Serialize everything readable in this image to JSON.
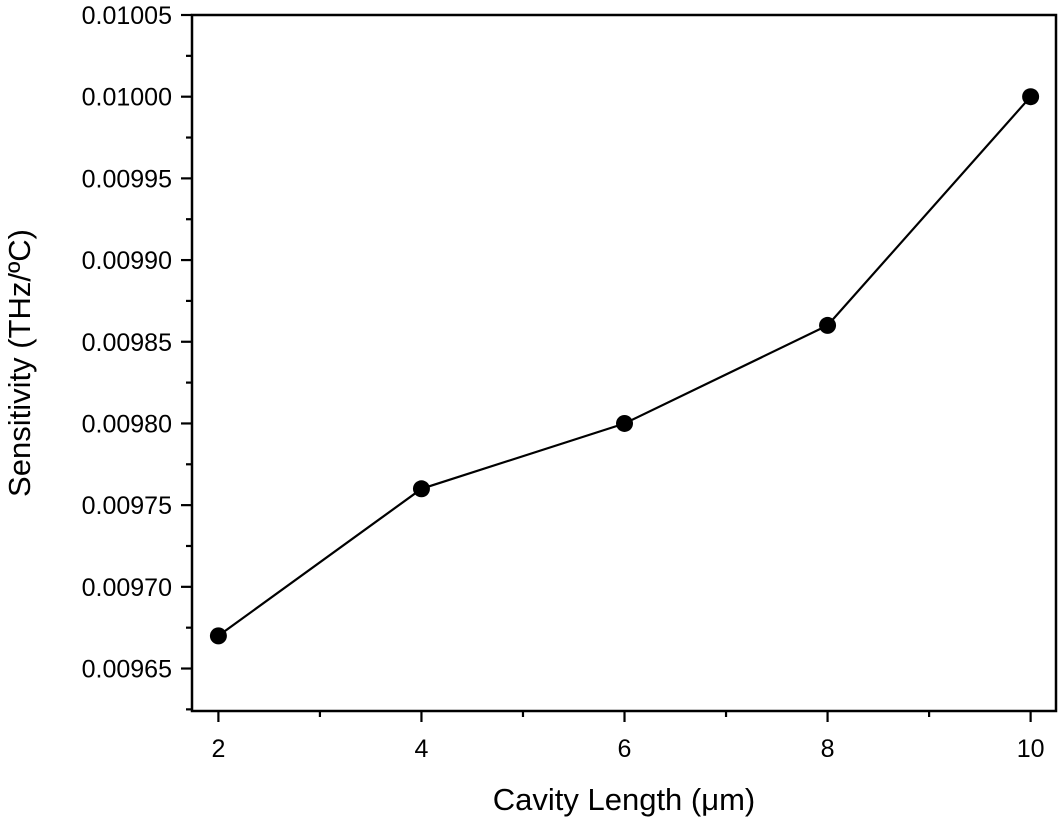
{
  "chart_data": {
    "type": "line",
    "title": "",
    "xlabel": "Cavity Length (μm)",
    "ylabel": "Sensitivity (THz/ºC)",
    "x": [
      2,
      4,
      6,
      8,
      10
    ],
    "series": [
      {
        "name": "Sensitivity",
        "values": [
          0.00967,
          0.00976,
          0.0098,
          0.00986,
          0.01
        ],
        "marker": "circle",
        "color": "#000000"
      }
    ],
    "xlim": [
      1.74,
      10.25
    ],
    "ylim": [
      0.009624,
      0.01005
    ],
    "xticks": [
      2,
      4,
      6,
      8,
      10
    ],
    "xtick_labels": [
      "2",
      "4",
      "6",
      "8",
      "10"
    ],
    "xminor_ticks": [
      3,
      5,
      7,
      9
    ],
    "yticks": [
      0.00965,
      0.0097,
      0.00975,
      0.0098,
      0.00985,
      0.0099,
      0.00995,
      0.01,
      0.01005
    ],
    "ytick_labels": [
      "0.00965",
      "0.00970",
      "0.00975",
      "0.00980",
      "0.00985",
      "0.00990",
      "0.00995",
      "0.01000",
      "0.01005"
    ],
    "yminor_ticks": [
      0.009625,
      0.009675,
      0.009725,
      0.009775,
      0.009825,
      0.009875,
      0.009925,
      0.009975,
      0.010025
    ],
    "grid": false,
    "legend": null
  },
  "colors": {
    "axis": "#000000",
    "line": "#000000",
    "marker": "#000000",
    "background": "#ffffff"
  }
}
